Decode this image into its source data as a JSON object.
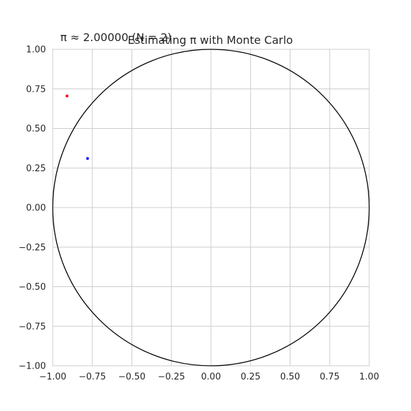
{
  "chart_data": {
    "type": "scatter",
    "title": "Estimating π with Monte Carlo",
    "annotation": "π ≈ 2.00000 (N = 2)",
    "xlabel": "",
    "ylabel": "",
    "xlim": [
      -1.0,
      1.0
    ],
    "ylim": [
      -1.0,
      1.0
    ],
    "grid": true,
    "x_ticks": [
      -1.0,
      -0.75,
      -0.5,
      -0.25,
      0.0,
      0.25,
      0.5,
      0.75,
      1.0
    ],
    "y_ticks": [
      -1.0,
      -0.75,
      -0.5,
      -0.25,
      0.0,
      0.25,
      0.5,
      0.75,
      1.0
    ],
    "x_tick_labels": [
      "−1.00",
      "−0.75",
      "−0.50",
      "−0.25",
      "0.00",
      "0.25",
      "0.50",
      "0.75",
      "1.00"
    ],
    "y_tick_labels": [
      "−1.00",
      "−0.75",
      "−0.50",
      "−0.25",
      "0.00",
      "0.25",
      "0.50",
      "0.75",
      "1.00"
    ],
    "circle": {
      "center": [
        0,
        0
      ],
      "radius": 1,
      "color": "#000000"
    },
    "points": [
      {
        "x": -0.91,
        "y": 0.705,
        "inside": false,
        "color": "#ff0000"
      },
      {
        "x": -0.78,
        "y": 0.31,
        "inside": true,
        "color": "#0000ff"
      }
    ],
    "colors": {
      "inside": "#0000ff",
      "outside": "#ff0000",
      "grid": "#cccccc",
      "axes": "#cccccc"
    }
  }
}
